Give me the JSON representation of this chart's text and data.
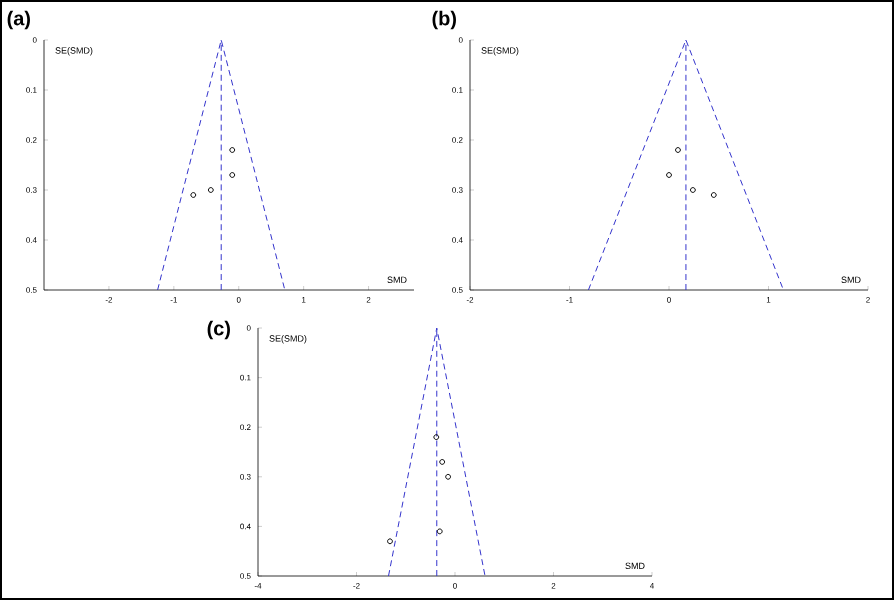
{
  "chart_data": [
    {
      "type": "scatter",
      "title": "(a)",
      "xlabel": "SMD",
      "ylabel": "SE(SMD)",
      "xlim": [
        -3,
        2.7
      ],
      "ylim": [
        0.5,
        0
      ],
      "xticks": [
        -2,
        -1,
        0,
        1,
        2
      ],
      "yticks": [
        0,
        0.1,
        0.2,
        0.3,
        0.4,
        0.5
      ],
      "series": [
        {
          "type": "line",
          "color": "#3333cc",
          "line_style": "dashed",
          "marker": "none",
          "x": [
            -1.25,
            -0.27,
            0.71
          ],
          "values": [
            0.5,
            0,
            0.5
          ]
        },
        {
          "color": "#000000",
          "marker": "circle",
          "x": [
            -0.1,
            -0.1,
            -0.43,
            -0.7
          ],
          "values": [
            0.22,
            0.27,
            0.3,
            0.31
          ]
        }
      ],
      "ref_lines": [
        {
          "axis": "x",
          "value": -0.27,
          "color": "#3333cc",
          "line_style": "dashed"
        }
      ]
    },
    {
      "type": "scatter",
      "title": "(b)",
      "xlabel": "SMD",
      "ylabel": "SE(SMD)",
      "xlim": [
        -2,
        2
      ],
      "ylim": [
        0.5,
        0
      ],
      "xticks": [
        -2,
        -1,
        0,
        1,
        2
      ],
      "yticks": [
        0,
        0.1,
        0.2,
        0.3,
        0.4,
        0.5
      ],
      "series": [
        {
          "type": "line",
          "color": "#3333cc",
          "line_style": "dashed",
          "marker": "none",
          "x": [
            -0.81,
            0.17,
            1.15
          ],
          "values": [
            0.5,
            0,
            0.5
          ]
        },
        {
          "color": "#000000",
          "marker": "circle",
          "x": [
            0.09,
            0,
            0.24,
            0.45
          ],
          "values": [
            0.22,
            0.27,
            0.3,
            0.31
          ]
        }
      ],
      "ref_lines": [
        {
          "axis": "x",
          "value": 0.17,
          "color": "#3333cc",
          "line_style": "dashed"
        }
      ]
    },
    {
      "type": "scatter",
      "title": "(c)",
      "xlabel": "SMD",
      "ylabel": "SE(SMD)",
      "xlim": [
        -4,
        4
      ],
      "ylim": [
        0.5,
        0
      ],
      "xticks": [
        -4,
        -2,
        0,
        2,
        4
      ],
      "yticks": [
        0,
        0.1,
        0.2,
        0.3,
        0.4,
        0.5
      ],
      "series": [
        {
          "type": "line",
          "color": "#3333cc",
          "line_style": "dashed",
          "marker": "none",
          "x": [
            -1.35,
            -0.37,
            0.61
          ],
          "values": [
            0.5,
            0,
            0.5
          ]
        },
        {
          "color": "#000000",
          "marker": "circle",
          "x": [
            -0.38,
            -0.26,
            -0.14,
            -0.31,
            -1.32
          ],
          "values": [
            0.22,
            0.27,
            0.3,
            0.41,
            0.43
          ]
        }
      ],
      "ref_lines": [
        {
          "axis": "x",
          "value": -0.37,
          "color": "#3333cc",
          "line_style": "dashed"
        }
      ]
    }
  ]
}
